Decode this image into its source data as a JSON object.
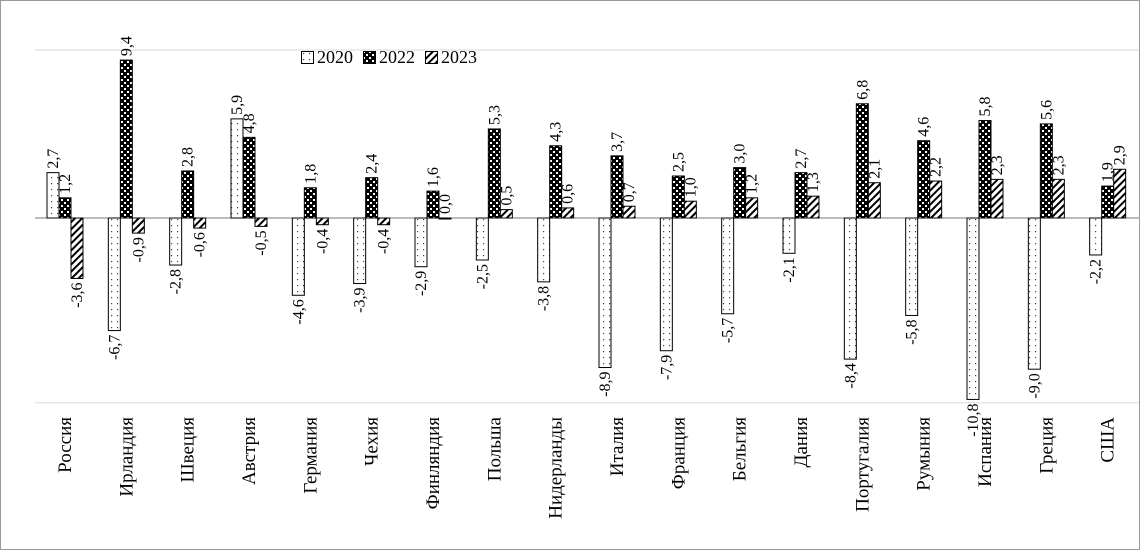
{
  "chart_data": {
    "type": "bar",
    "categories": [
      "Россия",
      "Ирландия",
      "Швеция",
      "Австрия",
      "Германия",
      "Чехия",
      "Финляндия",
      "Польша",
      "Нидерланды",
      "Италия",
      "Франция",
      "Бельгия",
      "Дания",
      "Португалия",
      "Румыния",
      "Испания",
      "Греция",
      "США"
    ],
    "series": [
      {
        "name": "2020",
        "pattern": "dots-light",
        "values": [
          2.7,
          -6.7,
          -2.8,
          5.9,
          -4.6,
          -3.9,
          -2.9,
          -2.5,
          -3.8,
          -8.9,
          -7.9,
          -5.7,
          -2.1,
          -8.4,
          -5.8,
          -10.8,
          -9.0,
          -2.2
        ],
        "labels": [
          "2,7",
          "-6,7",
          "-2,8",
          "5,9",
          "-4,6",
          "-3,9",
          "-2,9",
          "-2,5",
          "-3,8",
          "-8,9",
          "-7,9",
          "-5,7",
          "-2,1",
          "-8,4",
          "-5,8",
          "-10,8",
          "-9,0",
          "-2,2"
        ]
      },
      {
        "name": "2022",
        "pattern": "checker-dark",
        "values": [
          1.2,
          9.4,
          2.8,
          4.8,
          1.8,
          2.4,
          1.6,
          5.3,
          4.3,
          3.7,
          2.5,
          3.0,
          2.7,
          6.8,
          4.6,
          5.8,
          5.6,
          1.9
        ],
        "labels": [
          "1,2",
          "9,4",
          "2,8",
          "4,8",
          "1,8",
          "2,4",
          "1,6",
          "5,3",
          "4,3",
          "3,7",
          "2,5",
          "3,0",
          "2,7",
          "6,8",
          "4,6",
          "5,8",
          "5,6",
          "1,9"
        ]
      },
      {
        "name": "2023",
        "pattern": "diagonal",
        "values": [
          -3.6,
          -0.9,
          -0.6,
          -0.5,
          -0.4,
          -0.4,
          0.0,
          0.5,
          0.6,
          0.7,
          1.0,
          1.2,
          1.3,
          2.1,
          2.2,
          2.3,
          2.3,
          2.9
        ],
        "labels": [
          "-3,6",
          "-0,9",
          "-0,6",
          "-0,5",
          "-0,4",
          "-0,4",
          "0,0",
          "0,5",
          "0,6",
          "0,7",
          "1,0",
          "1,2",
          "1,3",
          "2,1",
          "2,2",
          "2,3",
          "2,3",
          "2,9"
        ]
      }
    ],
    "ylim": [
      -11,
      10
    ],
    "grid": true,
    "legend": "top-left"
  }
}
